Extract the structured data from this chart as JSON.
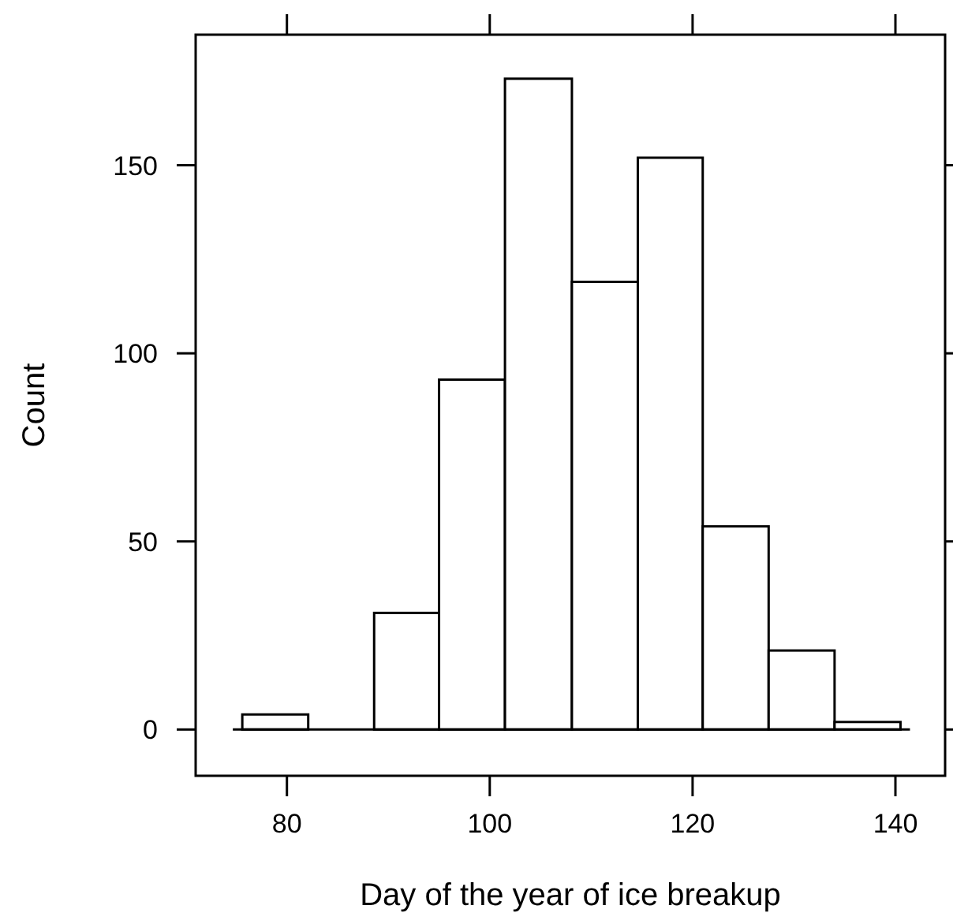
{
  "chart_data": {
    "type": "histogram",
    "xlabel": "Day of the year of ice breakup",
    "ylabel": "Count",
    "bins": [
      75.6,
      82.1,
      88.6,
      95.0,
      101.5,
      108.1,
      114.6,
      121.0,
      127.5,
      134.0,
      140.5
    ],
    "values": [
      4,
      0,
      31,
      93,
      173,
      119,
      152,
      54,
      21,
      2
    ],
    "color": "#ffffff",
    "xlim": [
      71.0,
      144.9
    ],
    "xticks": [
      80,
      100,
      120,
      140
    ],
    "ylim": [
      -12.3,
      184.7
    ],
    "yticks": [
      0,
      50,
      100,
      150
    ],
    "ref_lines": [
      {
        "axis": "y",
        "value": 0
      }
    ],
    "grid": false
  }
}
